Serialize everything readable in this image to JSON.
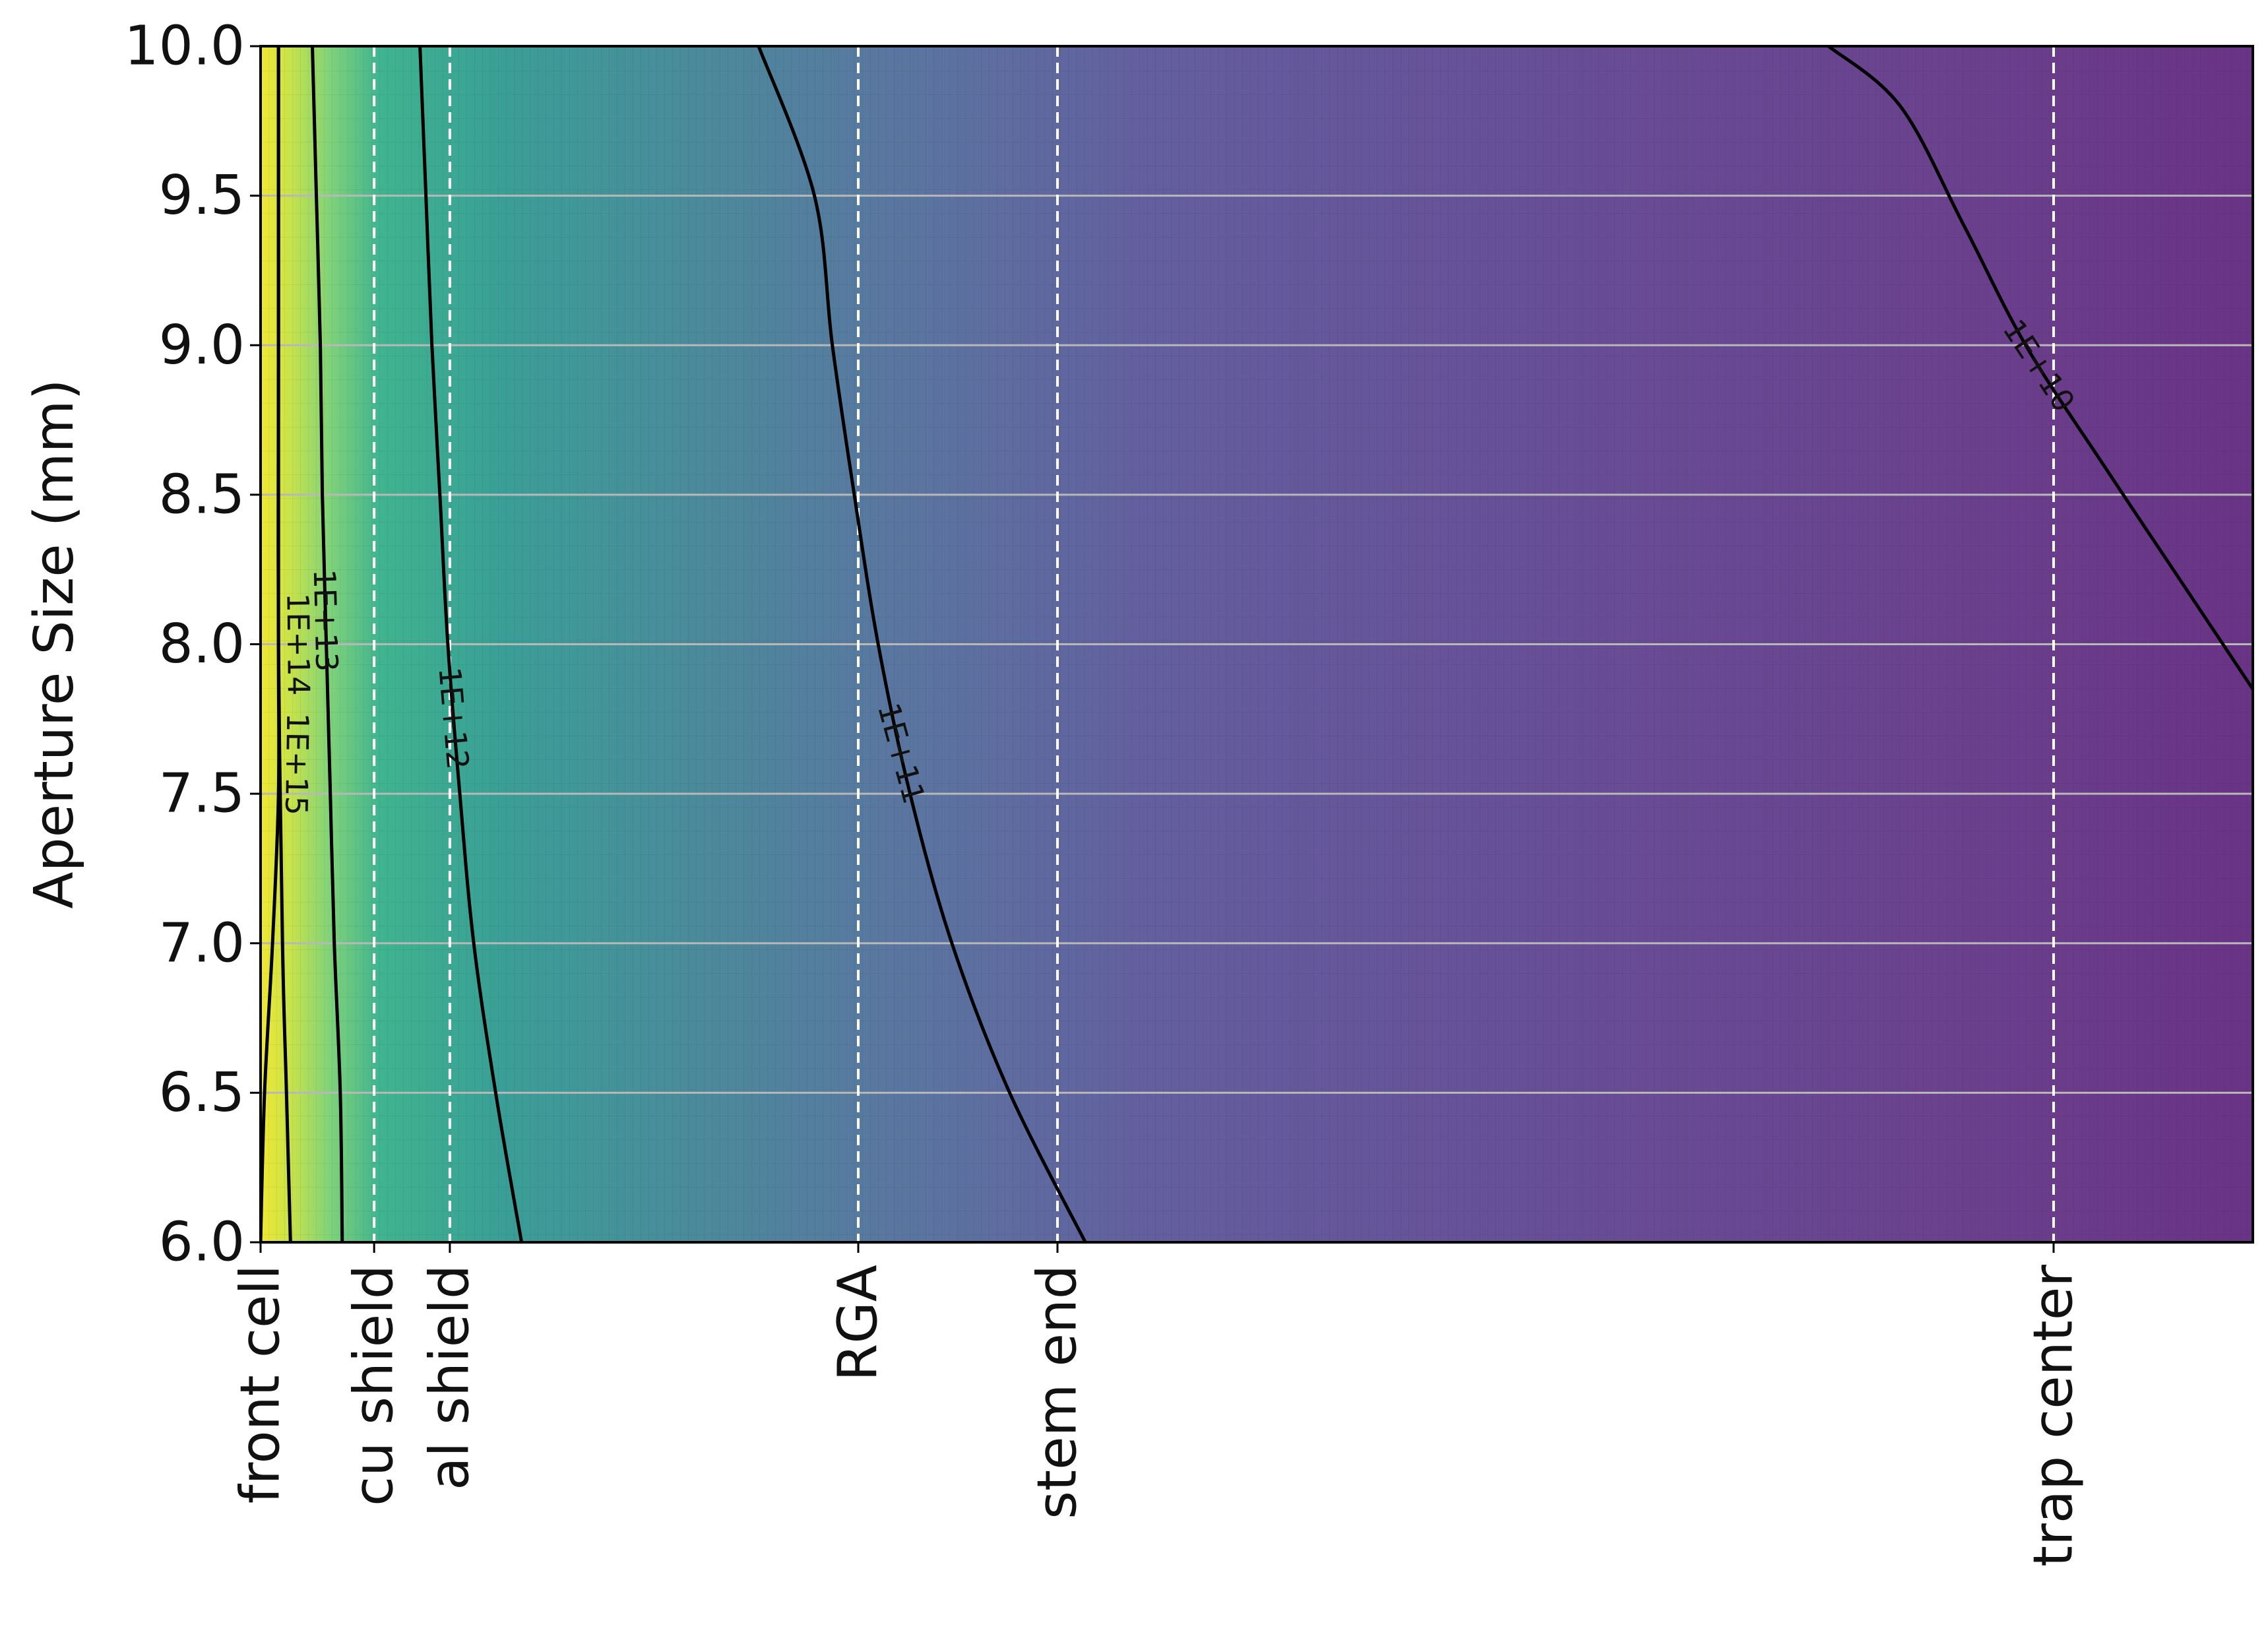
{
  "chart_data": {
    "type": "heatmap",
    "title": "",
    "xlabel": "",
    "ylabel": "Aperture Size (mm)",
    "xlim": [
      0,
      1
    ],
    "ylim": [
      6.0,
      10.0
    ],
    "y_ticks": [
      "6.0",
      "6.5",
      "7.0",
      "7.5",
      "8.0",
      "8.5",
      "9.0",
      "9.5",
      "10.0"
    ],
    "y_gridlines": [
      6.5,
      7.0,
      7.5,
      8.0,
      8.5,
      9.0,
      9.5
    ],
    "grid": "horizontal",
    "colormap": "viridis",
    "locations": [
      {
        "label": "front cell",
        "x": 0.0
      },
      {
        "label": "cu shield",
        "x": 0.057
      },
      {
        "label": "al shield",
        "x": 0.095
      },
      {
        "label": "RGA",
        "x": 0.3
      },
      {
        "label": "stem end",
        "x": 0.4
      },
      {
        "label": "trap center",
        "x": 0.9
      }
    ],
    "contours": [
      {
        "label": "1E+15",
        "points": [
          [
            0.0,
            6.0
          ],
          [
            0.002,
            6.5
          ],
          [
            0.006,
            7.0
          ],
          [
            0.009,
            7.5
          ],
          [
            0.009,
            8.0
          ],
          [
            0.009,
            9.0
          ],
          [
            0.009,
            10.0
          ]
        ]
      },
      {
        "label": "1E+14",
        "points": [
          [
            0.015,
            6.0
          ],
          [
            0.013,
            6.5
          ],
          [
            0.011,
            7.0
          ],
          [
            0.009,
            8.0
          ],
          [
            0.009,
            9.0
          ],
          [
            0.009,
            10.0
          ]
        ]
      },
      {
        "label": "1E+13",
        "points": [
          [
            0.041,
            6.0
          ],
          [
            0.04,
            6.5
          ],
          [
            0.037,
            7.0
          ],
          [
            0.035,
            7.5
          ],
          [
            0.033,
            8.0
          ],
          [
            0.031,
            8.5
          ],
          [
            0.03,
            9.0
          ],
          [
            0.028,
            9.5
          ],
          [
            0.026,
            10.0
          ]
        ]
      },
      {
        "label": "1E+12",
        "points": [
          [
            0.131,
            6.0
          ],
          [
            0.118,
            6.5
          ],
          [
            0.107,
            7.0
          ],
          [
            0.1,
            7.5
          ],
          [
            0.094,
            8.0
          ],
          [
            0.09,
            8.5
          ],
          [
            0.086,
            9.0
          ],
          [
            0.083,
            9.5
          ],
          [
            0.08,
            10.0
          ]
        ]
      },
      {
        "label": "1E+11",
        "points": [
          [
            0.414,
            6.0
          ],
          [
            0.376,
            6.5
          ],
          [
            0.347,
            7.0
          ],
          [
            0.326,
            7.5
          ],
          [
            0.31,
            8.0
          ],
          [
            0.298,
            8.5
          ],
          [
            0.287,
            9.0
          ],
          [
            0.278,
            9.5
          ],
          [
            0.25,
            10.0
          ]
        ]
      },
      {
        "label": "1E+10",
        "points": [
          [
            1.0,
            7.85
          ],
          [
            0.965,
            8.2
          ],
          [
            0.925,
            8.6
          ],
          [
            0.886,
            9.0
          ],
          [
            0.855,
            9.4
          ],
          [
            0.823,
            9.8
          ],
          [
            0.787,
            10.0
          ]
        ]
      }
    ]
  }
}
